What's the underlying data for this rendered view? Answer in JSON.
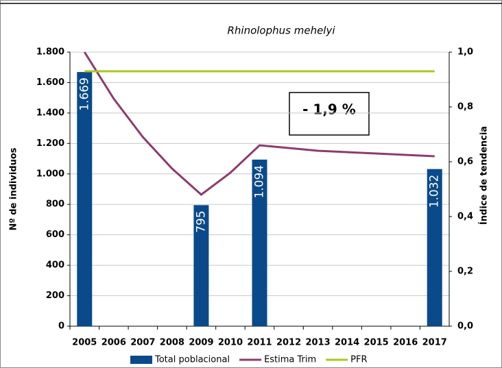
{
  "chart_data": {
    "type": "bar-line",
    "title": "Rhinolophus mehelyi",
    "y_label": "Nº de individuos",
    "y2_label": "Índice de tendencia",
    "annotation": "- 1,9 %",
    "categories": [
      "2005",
      "2006",
      "2007",
      "2008",
      "2009",
      "2010",
      "2011",
      "2012",
      "2013",
      "2014",
      "2015",
      "2016",
      "2017"
    ],
    "series": [
      {
        "name": "Total poblacional",
        "type": "bar",
        "color": "#0a4a8a",
        "values": [
          1669,
          null,
          null,
          null,
          795,
          null,
          1094,
          null,
          null,
          null,
          null,
          null,
          1032
        ],
        "value_labels": [
          "1.669",
          null,
          null,
          null,
          "795",
          null,
          "1.094",
          null,
          null,
          null,
          null,
          null,
          "1.032"
        ]
      },
      {
        "name": "Estima Trim",
        "type": "line",
        "axis": "y2",
        "color": "#8e3a6b",
        "values": [
          1.0,
          0.83,
          0.69,
          0.575,
          0.48,
          0.56,
          0.66,
          0.65,
          0.64,
          0.635,
          0.63,
          0.625,
          0.62
        ]
      },
      {
        "name": "PFR",
        "type": "line",
        "axis": "y2",
        "color": "#a8c91c",
        "values": [
          0.93,
          0.93,
          0.93,
          0.93,
          0.93,
          0.93,
          0.93,
          0.93,
          0.93,
          0.93,
          0.93,
          0.93,
          0.93
        ]
      }
    ],
    "ylim": [
      0,
      1800
    ],
    "yticks": [
      0,
      200,
      400,
      600,
      800,
      {
        "value": 1000,
        "label": "1.000"
      },
      {
        "value": 1200,
        "label": "1.200"
      },
      {
        "value": 1400,
        "label": "1.400"
      },
      {
        "value": 1600,
        "label": "1.600"
      },
      {
        "value": 1800,
        "label": "1.800"
      }
    ],
    "y2lim": [
      0,
      1.0
    ],
    "y2ticks": [
      {
        "value": 0,
        "label": "0,0"
      },
      {
        "value": 0.2,
        "label": "0,2"
      },
      {
        "value": 0.4,
        "label": "0,4"
      },
      {
        "value": 0.6,
        "label": "0,6"
      },
      {
        "value": 0.8,
        "label": "0,8"
      },
      {
        "value": 1.0,
        "label": "1,0"
      }
    ],
    "grid": true,
    "legend": "bottom"
  }
}
